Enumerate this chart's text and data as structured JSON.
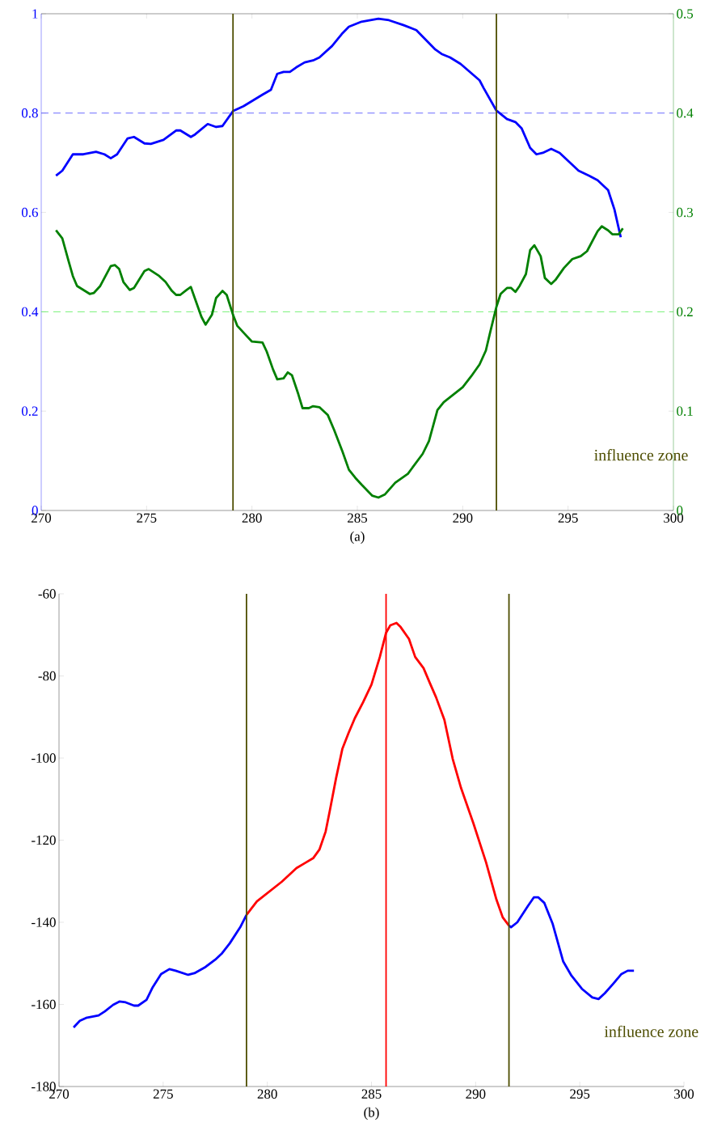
{
  "chart_data": [
    {
      "type": "line",
      "xlabel": "(a)",
      "xlim": [
        270,
        300
      ],
      "xticks": [
        270,
        275,
        280,
        285,
        290,
        295,
        300
      ],
      "ylim": [
        0,
        1
      ],
      "yticks": [
        0,
        0.2,
        0.4,
        0.6,
        0.8,
        1
      ],
      "y2lim": [
        0,
        0.5
      ],
      "y2ticks": [
        0,
        0.1,
        0.2,
        0.3,
        0.4,
        0.5
      ],
      "marker": "none",
      "line_style": "solid",
      "series": [
        {
          "color": "#0000ff",
          "x": [
            270.7,
            271.0,
            271.5,
            272.0,
            272.6,
            273.0,
            273.3,
            273.6,
            274.1,
            274.4,
            274.9,
            275.2,
            275.8,
            276.4,
            276.6,
            277.1,
            277.3,
            277.9,
            278.3,
            278.6,
            279.1,
            279.6,
            280.5,
            280.9,
            281.2,
            281.5,
            281.8,
            282.1,
            282.5,
            282.9,
            283.2,
            283.8,
            284.3,
            284.6,
            285.2,
            286.0,
            286.5,
            287.2,
            287.8,
            288.1,
            288.7,
            289.0,
            289.4,
            289.9,
            290.8,
            291.0,
            291.6,
            292.1,
            292.5,
            292.8,
            293.2,
            293.5,
            293.8,
            294.2,
            294.6,
            295.5,
            296.0,
            296.4,
            296.9,
            297.2,
            297.5
          ],
          "values": [
            0.674,
            0.684,
            0.717,
            0.717,
            0.722,
            0.717,
            0.709,
            0.717,
            0.749,
            0.752,
            0.739,
            0.738,
            0.746,
            0.765,
            0.765,
            0.752,
            0.757,
            0.778,
            0.772,
            0.774,
            0.804,
            0.814,
            0.837,
            0.847,
            0.879,
            0.883,
            0.883,
            0.892,
            0.902,
            0.906,
            0.912,
            0.935,
            0.961,
            0.974,
            0.984,
            0.99,
            0.987,
            0.977,
            0.967,
            0.954,
            0.928,
            0.919,
            0.912,
            0.899,
            0.866,
            0.85,
            0.805,
            0.788,
            0.782,
            0.769,
            0.73,
            0.717,
            0.72,
            0.728,
            0.72,
            0.684,
            0.674,
            0.665,
            0.645,
            0.606,
            0.55
          ]
        },
        {
          "color": "#008000",
          "axis": "y2",
          "x": [
            270.7,
            271.0,
            271.3,
            271.5,
            271.7,
            272.3,
            272.5,
            272.8,
            273.3,
            273.5,
            273.7,
            273.9,
            274.2,
            274.4,
            274.9,
            275.1,
            275.6,
            275.9,
            276.2,
            276.4,
            276.6,
            276.9,
            277.1,
            277.3,
            277.6,
            277.8,
            278.1,
            278.3,
            278.6,
            278.8,
            279.1,
            279.3,
            279.6,
            280.0,
            280.5,
            280.7,
            281.0,
            281.2,
            281.5,
            281.7,
            281.9,
            282.2,
            282.4,
            282.7,
            282.9,
            283.2,
            283.6,
            283.9,
            284.3,
            284.6,
            284.9,
            285.2,
            285.7,
            286.0,
            286.3,
            286.8,
            287.4,
            288.1,
            288.4,
            288.8,
            289.1,
            290.0,
            290.4,
            290.8,
            291.1,
            291.3,
            291.6,
            291.8,
            292.1,
            292.3,
            292.5,
            292.7,
            293.0,
            293.2,
            293.4,
            293.7,
            293.9,
            294.2,
            294.4,
            294.8,
            295.2,
            295.6,
            295.9,
            296.4,
            296.6,
            296.9,
            297.1,
            297.4,
            297.6
          ],
          "values": [
            0.282,
            0.274,
            0.251,
            0.236,
            0.226,
            0.218,
            0.219,
            0.226,
            0.246,
            0.247,
            0.243,
            0.23,
            0.222,
            0.224,
            0.241,
            0.243,
            0.236,
            0.23,
            0.221,
            0.217,
            0.217,
            0.222,
            0.225,
            0.213,
            0.195,
            0.187,
            0.197,
            0.214,
            0.221,
            0.217,
            0.197,
            0.186,
            0.179,
            0.17,
            0.169,
            0.16,
            0.142,
            0.132,
            0.133,
            0.139,
            0.136,
            0.117,
            0.103,
            0.103,
            0.105,
            0.104,
            0.096,
            0.081,
            0.059,
            0.041,
            0.033,
            0.026,
            0.015,
            0.013,
            0.016,
            0.028,
            0.037,
            0.057,
            0.07,
            0.101,
            0.109,
            0.124,
            0.135,
            0.147,
            0.161,
            0.179,
            0.205,
            0.218,
            0.224,
            0.224,
            0.22,
            0.226,
            0.238,
            0.262,
            0.267,
            0.256,
            0.234,
            0.228,
            0.232,
            0.244,
            0.253,
            0.256,
            0.261,
            0.281,
            0.286,
            0.282,
            0.278,
            0.278,
            0.284
          ]
        }
      ],
      "ref_lines": [
        {
          "axis": "x",
          "value": 279.1,
          "color": "#4d4d00",
          "line_style": "solid"
        },
        {
          "axis": "x",
          "value": 291.6,
          "color": "#4d4d00",
          "line_style": "solid"
        },
        {
          "axis": "y",
          "value": 0.8,
          "color": "#4444ff",
          "line_style": "dashed"
        },
        {
          "axis": "y2",
          "value": 0.2,
          "color": "#55ee55",
          "line_style": "dashed"
        }
      ],
      "annotations": [
        "influence zone"
      ]
    },
    {
      "type": "line",
      "xlabel": "(b)",
      "xlim": [
        270,
        300
      ],
      "xticks": [
        270,
        275,
        280,
        285,
        290,
        295,
        300
      ],
      "ylim": [
        -180,
        -60
      ],
      "yticks": [
        -180,
        -160,
        -140,
        -120,
        -100,
        -80,
        -60
      ],
      "marker": "none",
      "line_style": "solid",
      "series": [
        {
          "color": "#0000ff",
          "x": [
            270.7,
            271.0,
            271.3,
            271.9,
            272.2,
            272.6,
            272.9,
            273.2,
            273.6,
            273.8,
            274.2,
            274.5,
            274.9,
            275.3,
            275.6,
            276.2,
            276.5,
            277.0,
            277.5,
            277.8,
            278.2,
            278.7,
            279.0
          ],
          "values": [
            -165.6,
            -164.0,
            -163.3,
            -162.7,
            -161.7,
            -160.1,
            -159.3,
            -159.5,
            -160.3,
            -160.3,
            -158.9,
            -155.8,
            -152.6,
            -151.4,
            -151.8,
            -152.8,
            -152.4,
            -151.0,
            -149.1,
            -147.7,
            -145.1,
            -141.2,
            -138.2
          ]
        },
        {
          "color": "#ff0000",
          "x": [
            279.0,
            279.5,
            280.1,
            280.7,
            281.4,
            281.8,
            282.2,
            282.5,
            282.8,
            283.0,
            283.3,
            283.6,
            283.9,
            284.2,
            284.6,
            285.0,
            285.4,
            285.7,
            285.9,
            286.2,
            286.4,
            286.8,
            287.1,
            287.5,
            287.8,
            288.1,
            288.5,
            288.9,
            289.3,
            289.9,
            290.5,
            291.0,
            291.3,
            291.6
          ],
          "values": [
            -138.2,
            -134.9,
            -132.5,
            -130.1,
            -126.8,
            -125.6,
            -124.4,
            -122.3,
            -117.9,
            -112.8,
            -104.9,
            -97.8,
            -93.9,
            -90.3,
            -86.4,
            -82.1,
            -75.4,
            -69.5,
            -67.7,
            -67.1,
            -68.1,
            -71.0,
            -75.4,
            -78.1,
            -81.7,
            -85.2,
            -90.7,
            -100.2,
            -107.3,
            -116.0,
            -125.4,
            -134.5,
            -138.8,
            -140.8
          ]
        },
        {
          "color": "#0000ff",
          "x": [
            291.6,
            291.7,
            292.0,
            292.5,
            292.8,
            293.0,
            293.3,
            293.7,
            294.2,
            294.6,
            295.1,
            295.6,
            295.9,
            296.2,
            296.6,
            297.0,
            297.3,
            297.6
          ],
          "values": [
            -140.8,
            -141.2,
            -140.0,
            -136.1,
            -133.9,
            -133.9,
            -135.3,
            -140.4,
            -149.5,
            -153.0,
            -156.2,
            -158.3,
            -158.7,
            -157.3,
            -155.0,
            -152.6,
            -151.8,
            -151.8
          ]
        }
      ],
      "ref_lines": [
        {
          "axis": "x",
          "value": 279.0,
          "color": "#4d4d00",
          "line_style": "solid"
        },
        {
          "axis": "x",
          "value": 285.7,
          "color": "#ff0000",
          "line_style": "solid"
        },
        {
          "axis": "x",
          "value": 291.6,
          "color": "#4d4d00",
          "line_style": "solid"
        }
      ],
      "annotations": [
        "influence zone"
      ]
    }
  ]
}
